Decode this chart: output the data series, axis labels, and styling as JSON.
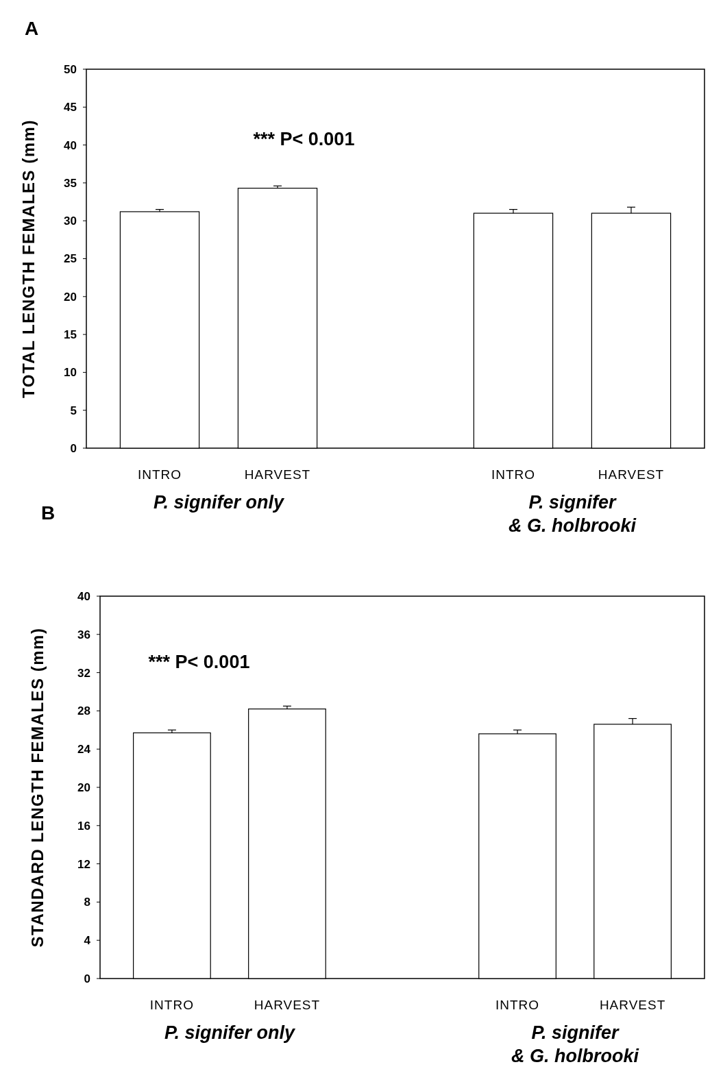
{
  "chart_data": [
    {
      "type": "bar",
      "title": "A",
      "ylabel": "TOTAL LENGTH FEMALES (mm)",
      "categories": [
        "INTRO",
        "HARVEST",
        null,
        "INTRO",
        "HARVEST"
      ],
      "values": [
        31.2,
        34.3,
        null,
        31.0,
        31.0
      ],
      "errors": [
        [
          31.2,
          31.5
        ],
        [
          34.3,
          34.6
        ],
        null,
        [
          31.0,
          31.5
        ],
        [
          31.0,
          31.8
        ]
      ],
      "color": "#ffffff",
      "ylim": [
        0,
        50
      ],
      "yticks": [
        0,
        5,
        10,
        15,
        20,
        25,
        30,
        35,
        40,
        45,
        50
      ],
      "grid": false,
      "annotations": [
        "*** P< 0.001",
        "P. signifer  only",
        "P. signifer\n& G. holbrooki"
      ]
    },
    {
      "type": "bar",
      "title": "B",
      "ylabel": "STANDARD LENGTH FEMALES (mm)",
      "categories": [
        "INTRO",
        "HARVEST",
        null,
        "INTRO",
        "HARVEST"
      ],
      "values": [
        25.7,
        28.2,
        null,
        25.6,
        26.6
      ],
      "errors": [
        [
          25.7,
          26.0
        ],
        [
          28.2,
          28.5
        ],
        null,
        [
          25.6,
          26.0
        ],
        [
          26.6,
          27.2
        ]
      ],
      "color": "#ffffff",
      "ylim": [
        0,
        40
      ],
      "yticks": [
        0,
        4,
        8,
        12,
        16,
        20,
        24,
        28,
        32,
        36,
        40
      ],
      "grid": false,
      "annotations": [
        "*** P< 0.001",
        "P. signifer only",
        "P. signifer\n& G. holbrooki"
      ]
    }
  ]
}
